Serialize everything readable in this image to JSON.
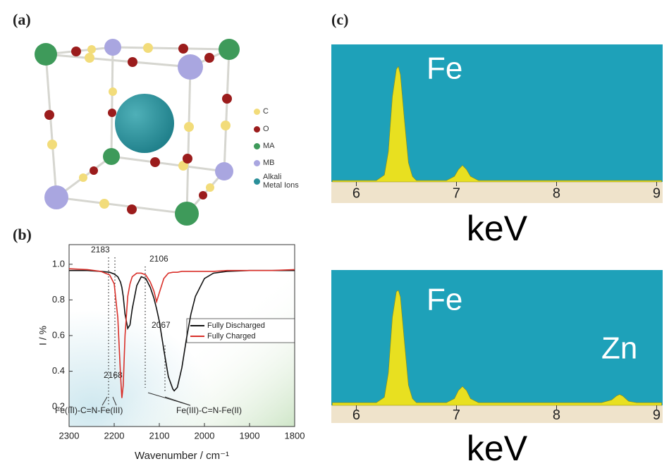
{
  "panels": [
    "(a)",
    "(b)",
    "(c)"
  ],
  "structure_legend": [
    "C",
    "O",
    "MA",
    "MB",
    "Alkali Metal Ions"
  ],
  "chart_data": [
    {
      "type": "line",
      "xlabel": "Wavenumber / cm⁻¹",
      "ylabel": "I / %",
      "x": [
        2300,
        2260,
        2230,
        2210,
        2200,
        2192,
        2186,
        2183,
        2180,
        2176,
        2170,
        2165,
        2160,
        2150,
        2140,
        2130,
        2120,
        2112,
        2106,
        2100,
        2090,
        2080,
        2070,
        2067,
        2060,
        2050,
        2040,
        2030,
        2020,
        2000,
        1980,
        1950,
        1900,
        1850,
        1800
      ],
      "series": [
        {
          "name": "Fully Discharged",
          "color": "#111111",
          "values": [
            0.965,
            0.965,
            0.96,
            0.955,
            0.945,
            0.93,
            0.9,
            0.87,
            0.82,
            0.72,
            0.64,
            0.66,
            0.75,
            0.88,
            0.93,
            0.92,
            0.87,
            0.81,
            0.75,
            0.68,
            0.52,
            0.37,
            0.3,
            0.29,
            0.31,
            0.42,
            0.58,
            0.72,
            0.82,
            0.92,
            0.95,
            0.96,
            0.965,
            0.965,
            0.965
          ]
        },
        {
          "name": "Fully Charged",
          "color": "#d9302a",
          "values": [
            0.975,
            0.97,
            0.96,
            0.94,
            0.89,
            0.7,
            0.38,
            0.25,
            0.32,
            0.6,
            0.82,
            0.89,
            0.93,
            0.95,
            0.95,
            0.94,
            0.9,
            0.85,
            0.79,
            0.84,
            0.92,
            0.95,
            0.955,
            0.955,
            0.955,
            0.96,
            0.96,
            0.96,
            0.96,
            0.96,
            0.96,
            0.965,
            0.965,
            0.965,
            0.97
          ]
        }
      ],
      "xlim": [
        2300,
        1800
      ],
      "xticks": [
        2300,
        2200,
        2100,
        2000,
        1900,
        1800
      ],
      "ylim": [
        0.09,
        1.11
      ],
      "yticks": [
        0.2,
        0.4,
        0.6,
        0.8,
        {
          "value": 1,
          "label": "1.0"
        }
      ],
      "legend": "right",
      "annotations": [
        "2183",
        "2106",
        "2067",
        "2168",
        "Fe(III)-C=N-Fe(III)",
        "Fe(III)-C=N-Fe(II)"
      ]
    },
    {
      "type": "area",
      "xlabel": "keV",
      "color": "#e8e020",
      "x": [
        5.76,
        6.2,
        6.28,
        6.32,
        6.36,
        6.4,
        6.42,
        6.44,
        6.48,
        6.52,
        6.56,
        6.6,
        6.9,
        6.98,
        7.02,
        7.06,
        7.1,
        7.14,
        7.22,
        9.05
      ],
      "values": [
        1,
        1,
        5,
        22,
        62,
        82,
        84,
        78,
        45,
        14,
        4,
        1,
        1,
        4,
        9,
        12,
        9,
        4,
        1,
        1
      ],
      "xlim": [
        5.75,
        9.06
      ],
      "xticks": [
        6,
        7,
        8,
        9
      ],
      "ylim": [
        0,
        100
      ],
      "annotations": [
        "Fe"
      ]
    },
    {
      "type": "area",
      "xlabel": "keV",
      "color": "#e8e020",
      "x": [
        5.76,
        6.2,
        6.28,
        6.32,
        6.36,
        6.4,
        6.42,
        6.44,
        6.48,
        6.52,
        6.56,
        6.6,
        6.9,
        6.98,
        7.02,
        7.06,
        7.1,
        7.14,
        7.22,
        8.45,
        8.55,
        8.6,
        8.63,
        8.66,
        8.72,
        8.8,
        9.05
      ],
      "values": [
        2,
        2,
        6,
        24,
        65,
        84,
        85,
        80,
        47,
        15,
        5,
        2,
        2,
        5,
        11,
        14,
        11,
        5,
        2,
        2,
        4,
        7,
        8,
        7,
        3,
        2,
        2
      ],
      "xlim": [
        5.75,
        9.06
      ],
      "xticks": [
        6,
        7,
        8,
        9
      ],
      "ylim": [
        0,
        100
      ],
      "annotations": [
        "Fe",
        "Zn"
      ]
    }
  ]
}
